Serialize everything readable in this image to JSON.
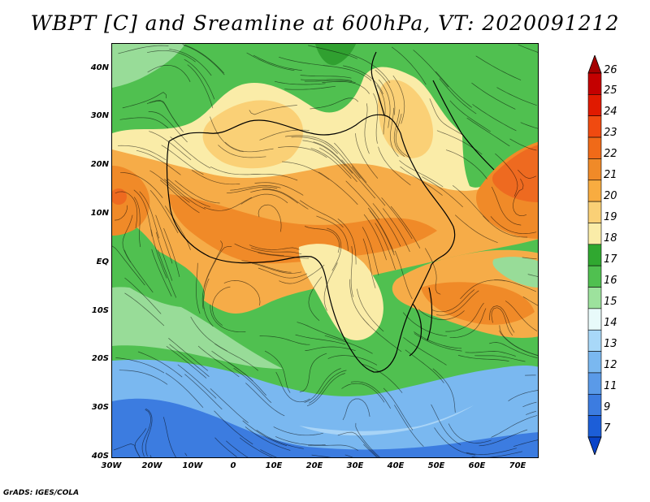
{
  "title": "WBPT [C] and Sreamline at 600hPa, VT: 2020091212",
  "credit": "GrADS: IGES/COLA",
  "y_axis_labels": [
    "40N",
    "30N",
    "20N",
    "10N",
    "EQ",
    "10S",
    "20S",
    "30S",
    "40S"
  ],
  "x_axis_labels": [
    "30W",
    "20W",
    "10W",
    "0",
    "10E",
    "20E",
    "30E",
    "40E",
    "50E",
    "60E",
    "70E"
  ],
  "colorbar": {
    "labels": [
      "26",
      "25",
      "24",
      "23",
      "22",
      "21",
      "20",
      "19",
      "18",
      "17",
      "16",
      "15",
      "14",
      "13",
      "12",
      "11",
      "9",
      "7"
    ],
    "colors": [
      "#a50000",
      "#c40000",
      "#e01a00",
      "#f04a10",
      "#f06a18",
      "#f08a28",
      "#f8ac40",
      "#fad076",
      "#faeca8",
      "#30a830",
      "#50c050",
      "#9de29d",
      "#e8fafa",
      "#a8d8f8",
      "#7ab8f0",
      "#5a9ae8",
      "#3c7ce0",
      "#1c5ed8",
      "#0a44c8"
    ]
  },
  "map_colors": {
    "deep_blue": "#2a6ad8",
    "mid_blue": "#6aa4ea",
    "light_blue": "#b0d8f8",
    "light_green": "#98dc98",
    "green": "#50c050",
    "dark_green": "#30a030",
    "cream": "#faeca8",
    "yellow": "#fad076",
    "orange": "#f6ac48",
    "dark_orange": "#f08a28",
    "red_orange": "#ee6a20"
  }
}
